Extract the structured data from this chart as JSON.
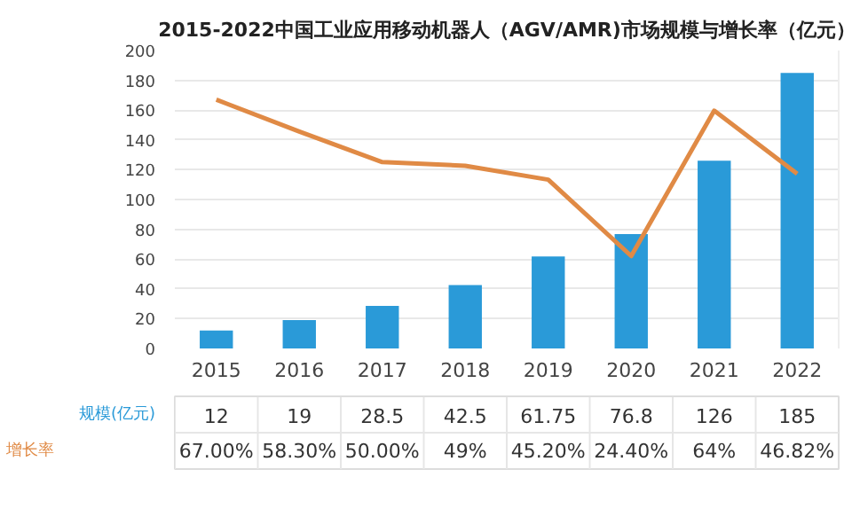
{
  "chart_data": {
    "type": "bar",
    "title": "2015-2022中国工业应用移动机器人（AGV/AMR)市场规模与增长率（亿元）",
    "categories": [
      "2015",
      "2016",
      "2017",
      "2018",
      "2019",
      "2020",
      "2021",
      "2022"
    ],
    "series": [
      {
        "name": "规模(亿元)",
        "color": "#2a9ad8",
        "values": [
          12,
          19,
          28.5,
          42.5,
          61.75,
          76.8,
          126,
          185
        ]
      },
      {
        "name": "增长率",
        "type": "line",
        "axis": "y2",
        "color": "#e08a45",
        "values": [
          67,
          58.3,
          50,
          49,
          45.2,
          24.4,
          64,
          46.82
        ],
        "value_labels": [
          "67.00%",
          "58.30%",
          "50.00%",
          "49%",
          "45.20%",
          "24.40%",
          "64%",
          "46.82%"
        ]
      }
    ],
    "ylim": [
      0,
      200
    ],
    "yticks": [
      0,
      20,
      40,
      60,
      80,
      100,
      120,
      140,
      160,
      180,
      200
    ],
    "y2lim": [
      -0.8,
      80.4
    ],
    "grid": "y",
    "data_labels": true
  }
}
